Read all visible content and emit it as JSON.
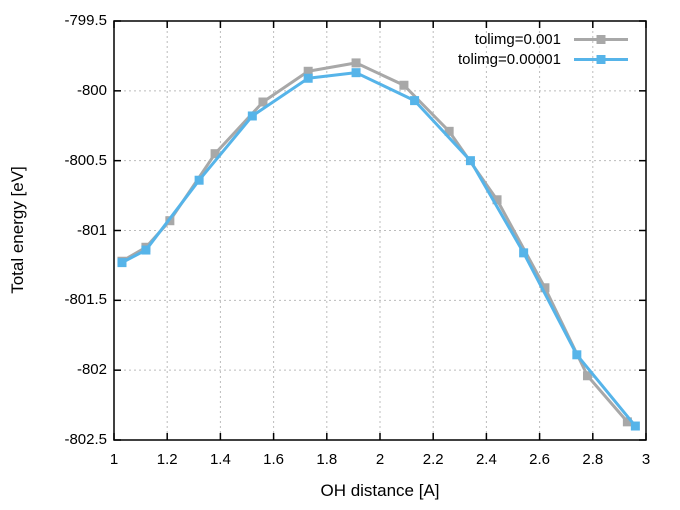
{
  "figure": {
    "background": "#ffffff",
    "border_color": "#000000",
    "grid_color": "#bcbcbc"
  },
  "chart_data": {
    "type": "line",
    "title": "",
    "xlabel": "OH distance [A]",
    "ylabel": "Total energy [eV]",
    "xlim": [
      1,
      3
    ],
    "ylim": [
      -802.5,
      -799.5
    ],
    "xticks": [
      1,
      1.2,
      1.4,
      1.6,
      1.8,
      2,
      2.2,
      2.4,
      2.6,
      2.8,
      3
    ],
    "xtick_labels": [
      "1",
      "1.2",
      "1.4",
      "1.6",
      "1.8",
      "2",
      "2.2",
      "2.4",
      "2.6",
      "2.8",
      "3"
    ],
    "yticks": [
      -799.5,
      -800,
      -800.5,
      -801,
      -801.5,
      -802,
      -802.5
    ],
    "ytick_labels": [
      "-799.5",
      "-800",
      "-800.5",
      "-801",
      "-801.5",
      "-802",
      "-802.5"
    ],
    "grid": "dotted",
    "legend_position": "top-right-inside",
    "series": [
      {
        "name": "tolimg=0.001",
        "color": "#a8a8a8",
        "marker": "square",
        "x": [
          1.03,
          1.12,
          1.21,
          1.38,
          1.56,
          1.73,
          1.91,
          2.09,
          2.26,
          2.44,
          2.62,
          2.78,
          2.93
        ],
        "y": [
          -801.22,
          -801.12,
          -800.93,
          -800.45,
          -800.08,
          -799.86,
          -799.8,
          -799.96,
          -800.29,
          -800.78,
          -801.41,
          -802.04,
          -802.37
        ]
      },
      {
        "name": "tolimg=0.00001",
        "color": "#56b4e9",
        "marker": "square",
        "x": [
          1.03,
          1.12,
          1.32,
          1.52,
          1.73,
          1.91,
          2.13,
          2.34,
          2.54,
          2.74,
          2.96
        ],
        "y": [
          -801.23,
          -801.14,
          -800.64,
          -800.18,
          -799.91,
          -799.87,
          -800.07,
          -800.5,
          -801.16,
          -801.89,
          -802.4
        ]
      }
    ]
  }
}
